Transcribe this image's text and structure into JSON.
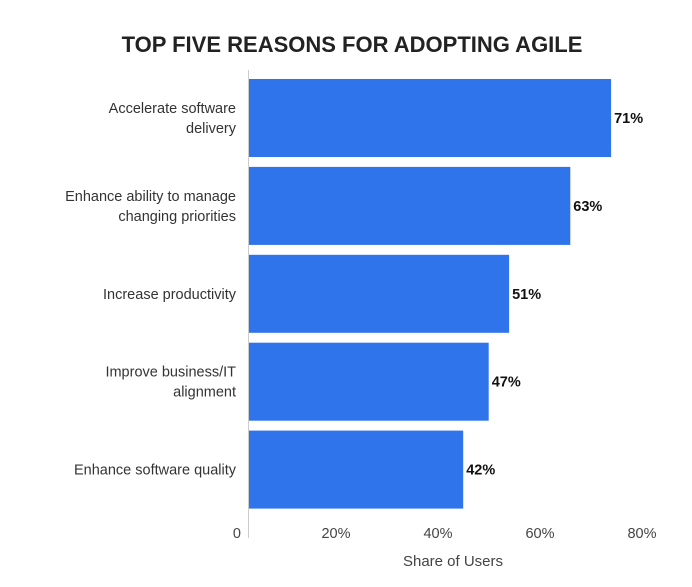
{
  "chart_data": {
    "type": "bar",
    "orientation": "horizontal",
    "title": "TOP FIVE REASONS FOR ADOPTING AGILE",
    "xlabel": "Share of Users",
    "ylabel": "",
    "categories": [
      [
        "Accelerate software",
        "delivery"
      ],
      [
        "Enhance ability to manage",
        "changing priorities"
      ],
      [
        "Increase productivity"
      ],
      [
        "Improve business/IT",
        "alignment"
      ],
      [
        "Enhance software quality"
      ]
    ],
    "values": [
      71,
      63,
      51,
      47,
      42
    ],
    "value_labels": [
      "71%",
      "63%",
      "51%",
      "47%",
      "42%"
    ],
    "xlim": [
      0,
      80
    ],
    "ticks": [
      0,
      20,
      40,
      60,
      80
    ],
    "tick_labels": [
      "0",
      "20%",
      "40%",
      "60%",
      "80%"
    ],
    "grid": false,
    "bar_color": "#2f74eb"
  }
}
